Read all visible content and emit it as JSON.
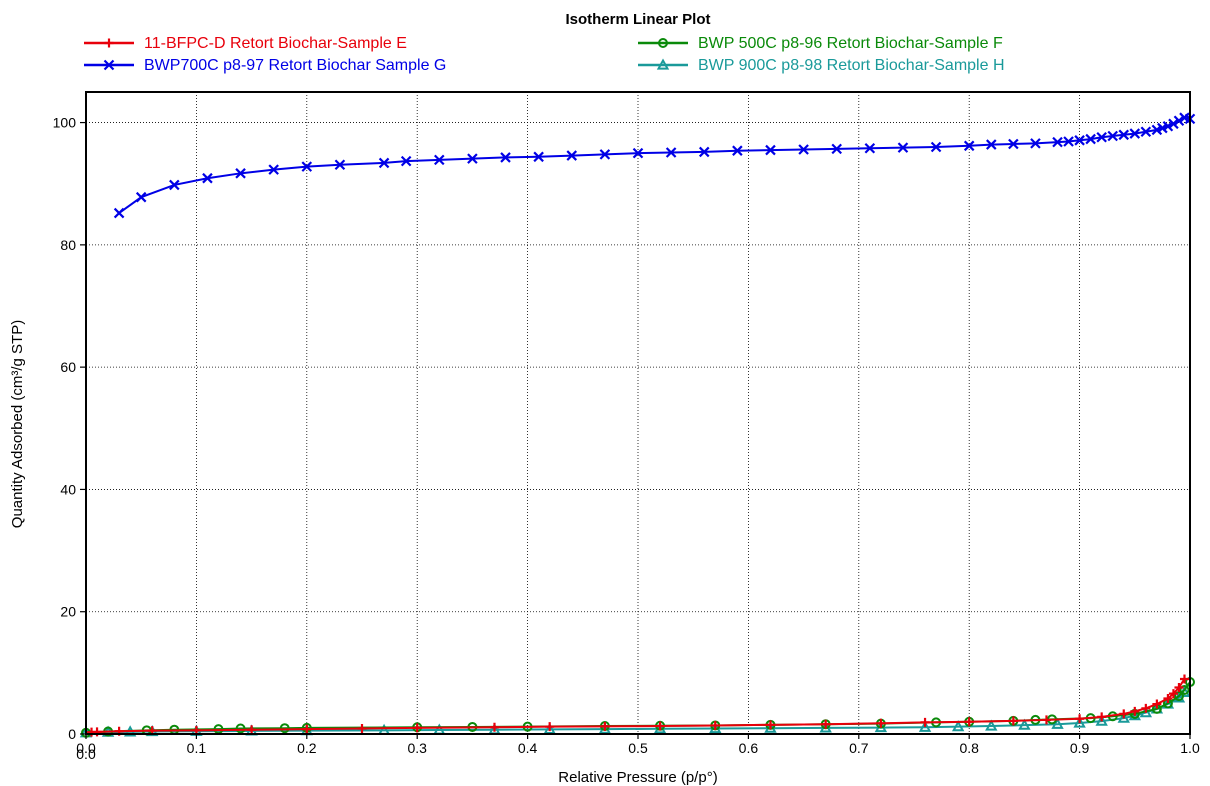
{
  "chart_data": {
    "type": "line",
    "title": "Isotherm Linear Plot",
    "xlabel": "Relative Pressure (p/p°)",
    "ylabel": "Quantity Adsorbed (cm³/g STP)",
    "xlim": [
      0.0,
      1.0
    ],
    "ylim": [
      0,
      105
    ],
    "x_ticks": [
      "0.0",
      "0.1",
      "0.2",
      "0.3",
      "0.4",
      "0.5",
      "0.6",
      "0.7",
      "0.8",
      "0.9",
      "1.0"
    ],
    "x_tick_extra": "0.0",
    "y_ticks": [
      "0",
      "20",
      "40",
      "60",
      "80",
      "100"
    ],
    "grid": true,
    "legend_position": "top",
    "series": [
      {
        "name": "11-BFPC-D Retort Biochar-Sample E",
        "color": "#e8000b",
        "marker": "plus",
        "x": [
          0.005,
          0.01,
          0.03,
          0.06,
          0.1,
          0.15,
          0.2,
          0.25,
          0.3,
          0.37,
          0.42,
          0.47,
          0.52,
          0.57,
          0.62,
          0.67,
          0.72,
          0.76,
          0.8,
          0.84,
          0.87,
          0.9,
          0.92,
          0.94,
          0.95,
          0.96,
          0.97,
          0.98,
          0.985,
          0.99,
          0.995
        ],
        "y": [
          0.3,
          0.35,
          0.45,
          0.55,
          0.6,
          0.7,
          0.8,
          0.9,
          1.0,
          1.1,
          1.2,
          1.25,
          1.3,
          1.4,
          1.5,
          1.6,
          1.75,
          1.9,
          2.0,
          2.15,
          2.3,
          2.5,
          2.8,
          3.3,
          3.7,
          4.2,
          4.9,
          5.8,
          6.6,
          7.6,
          9.0
        ]
      },
      {
        "name": "BWP 500C p8-96 Retort Biochar-Sample F",
        "color": "#0a8a0a",
        "marker": "circle",
        "x": [
          0.0,
          0.02,
          0.055,
          0.08,
          0.12,
          0.14,
          0.18,
          0.2,
          0.3,
          0.35,
          0.4,
          0.47,
          0.52,
          0.57,
          0.62,
          0.67,
          0.72,
          0.77,
          0.8,
          0.84,
          0.86,
          0.875,
          0.91,
          0.93,
          0.95,
          0.97,
          0.98,
          0.99,
          0.995,
          1.0
        ],
        "y": [
          0.2,
          0.4,
          0.6,
          0.7,
          0.8,
          0.9,
          0.95,
          1.0,
          1.1,
          1.15,
          1.2,
          1.3,
          1.35,
          1.4,
          1.5,
          1.6,
          1.7,
          1.9,
          2.0,
          2.15,
          2.3,
          2.4,
          2.6,
          2.9,
          3.3,
          4.1,
          5.0,
          6.2,
          7.2,
          8.5
        ]
      },
      {
        "name": "BWP700C p8-97 Retort Biochar Sample G",
        "color": "#0000e6",
        "marker": "x",
        "x": [
          0.03,
          0.05,
          0.08,
          0.11,
          0.14,
          0.17,
          0.2,
          0.23,
          0.27,
          0.29,
          0.32,
          0.35,
          0.38,
          0.41,
          0.44,
          0.47,
          0.5,
          0.53,
          0.56,
          0.59,
          0.62,
          0.65,
          0.68,
          0.71,
          0.74,
          0.77,
          0.8,
          0.82,
          0.84,
          0.86,
          0.88,
          0.89,
          0.9,
          0.91,
          0.92,
          0.93,
          0.94,
          0.95,
          0.96,
          0.97,
          0.975,
          0.98,
          0.985,
          0.99,
          0.995,
          1.0
        ],
        "y": [
          85.2,
          87.8,
          89.8,
          90.9,
          91.7,
          92.3,
          92.8,
          93.1,
          93.4,
          93.7,
          93.9,
          94.1,
          94.3,
          94.4,
          94.6,
          94.8,
          95.0,
          95.1,
          95.2,
          95.4,
          95.5,
          95.6,
          95.7,
          95.8,
          95.9,
          96.0,
          96.2,
          96.4,
          96.5,
          96.6,
          96.8,
          96.9,
          97.1,
          97.3,
          97.6,
          97.8,
          98.0,
          98.2,
          98.5,
          98.8,
          99.1,
          99.4,
          99.8,
          100.3,
          100.8,
          100.6
        ]
      },
      {
        "name": "BWP 900C p8-98 Retort Biochar-Sample H",
        "color": "#1a9a9a",
        "marker": "triangle",
        "x": [
          0.0,
          0.02,
          0.04,
          0.06,
          0.1,
          0.15,
          0.2,
          0.27,
          0.32,
          0.37,
          0.42,
          0.47,
          0.52,
          0.57,
          0.62,
          0.67,
          0.72,
          0.76,
          0.79,
          0.82,
          0.85,
          0.88,
          0.9,
          0.92,
          0.94,
          0.95,
          0.96,
          0.97,
          0.98,
          0.99,
          0.995
        ],
        "y": [
          0.2,
          0.3,
          0.35,
          0.4,
          0.45,
          0.5,
          0.55,
          0.6,
          0.65,
          0.7,
          0.75,
          0.8,
          0.85,
          0.9,
          0.95,
          1.0,
          1.05,
          1.1,
          1.2,
          1.3,
          1.45,
          1.6,
          1.8,
          2.1,
          2.6,
          3.0,
          3.5,
          4.1,
          4.9,
          5.9,
          6.8
        ]
      }
    ]
  }
}
